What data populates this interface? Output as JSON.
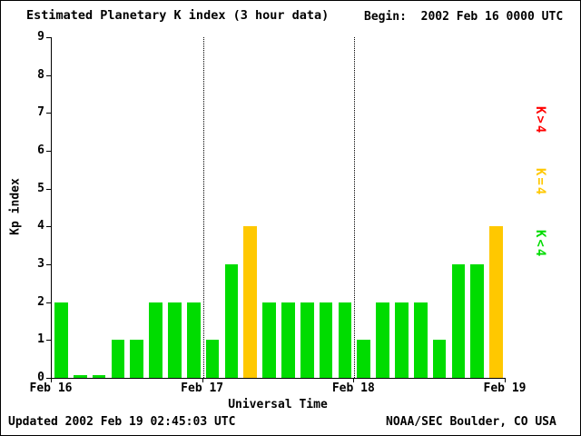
{
  "header": {
    "title": "Estimated Planetary K index (3 hour data)",
    "begin": "Begin:  2002 Feb 16 0000 UTC"
  },
  "footer": {
    "updated": "Updated 2002 Feb 19 02:45:03 UTC",
    "source": "NOAA/SEC Boulder, CO USA"
  },
  "chart_data": {
    "type": "bar",
    "title": "Estimated Planetary K index (3 hour data)",
    "xlabel": "Universal Time",
    "ylabel": "Kp index",
    "ylim": [
      0,
      9
    ],
    "y_ticks": [
      0,
      1,
      2,
      3,
      4,
      5,
      6,
      7,
      8,
      9
    ],
    "x_tick_labels": [
      "Feb 16",
      "Feb 17",
      "Feb 18",
      "Feb 19"
    ],
    "bars_per_day": 8,
    "interval_hours": 3,
    "values": [
      2,
      0,
      0,
      1,
      1,
      2,
      2,
      2,
      1,
      3,
      4,
      2,
      2,
      2,
      2,
      2,
      1,
      2,
      2,
      2,
      1,
      3,
      3,
      4
    ],
    "color_rule": "green if K<4, yellow if K=4, red if K>4",
    "colors": {
      "low": "#00dc00",
      "mid": "#ffc800",
      "high": "#ff0000"
    },
    "legend": [
      {
        "label": "K>4",
        "color": "#ff0000"
      },
      {
        "label": "K=4",
        "color": "#ffc800"
      },
      {
        "label": "K<4",
        "color": "#00dc00"
      }
    ],
    "grid": "dotted vertical lines at interior day boundaries",
    "legend_position": "right"
  }
}
